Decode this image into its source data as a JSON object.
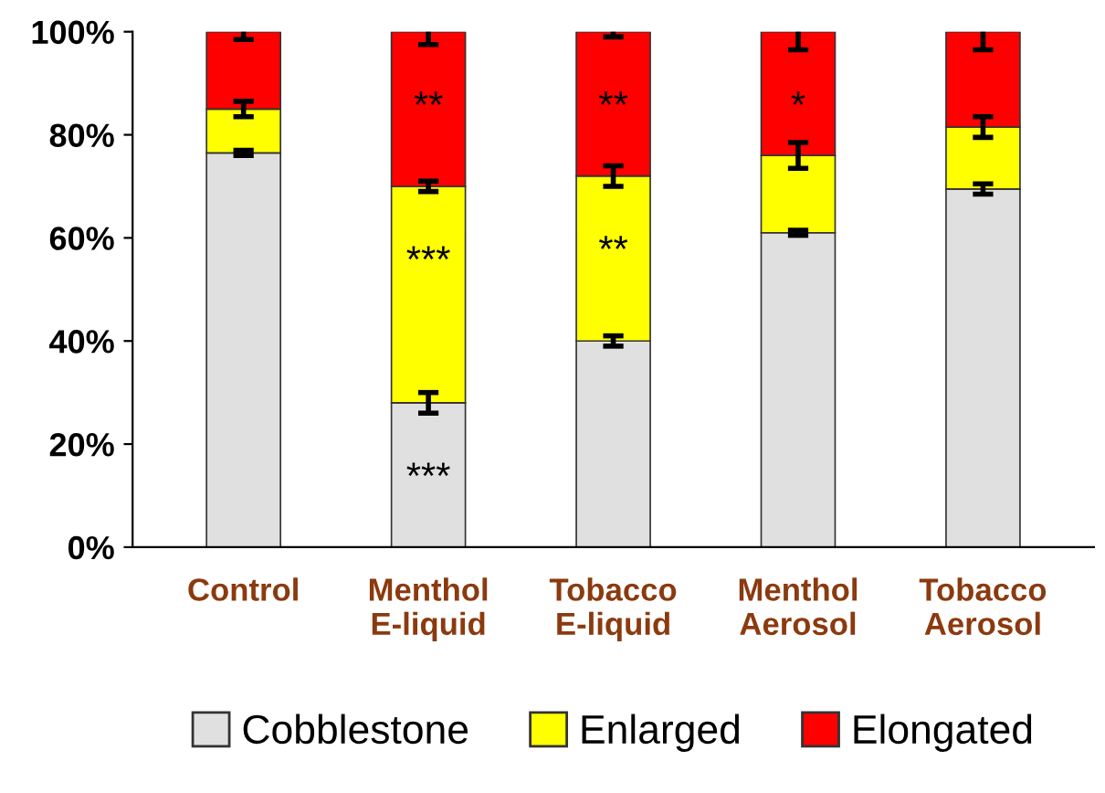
{
  "chart_data": {
    "type": "bar",
    "stacked": true,
    "categories": [
      "Control",
      "Menthol\nE-liquid",
      "Tobacco\nE-liquid",
      "Menthol\nAerosol",
      "Tobacco\nAerosol"
    ],
    "series": [
      {
        "name": "Cobblestone",
        "color": "#e0e0e0",
        "values": [
          76.5,
          28,
          40,
          61,
          69.5
        ],
        "errors": [
          0.5,
          2,
          1,
          0.5,
          1
        ]
      },
      {
        "name": "Enlarged",
        "color": "#ffff00",
        "values": [
          8.5,
          42,
          32,
          15,
          12
        ],
        "errors": [
          1.5,
          1,
          2,
          2.5,
          2
        ]
      },
      {
        "name": "Elongated",
        "color": "#ff0000",
        "values": [
          15,
          30,
          28,
          24,
          18.5
        ],
        "errors": [
          1.5,
          2.5,
          1,
          3.5,
          3.5
        ]
      }
    ],
    "ylim": [
      0,
      100
    ],
    "yticks": [
      {
        "value": 0,
        "label": "0%"
      },
      {
        "value": 20,
        "label": "20%"
      },
      {
        "value": 40,
        "label": "40%"
      },
      {
        "value": 60,
        "label": "60%"
      },
      {
        "value": 80,
        "label": "80%"
      },
      {
        "value": 100,
        "label": "100%"
      }
    ],
    "annotations": [
      {
        "text": "***",
        "x": "Menthol\nE-liquid",
        "y": 28
      },
      {
        "text": "***",
        "x": "Menthol\nE-liquid",
        "y": 70
      },
      {
        "text": "**",
        "x": "Menthol\nE-liquid",
        "y": 100
      },
      {
        "text": "**",
        "x": "Tobacco\nE-liquid",
        "y": 72
      },
      {
        "text": "**",
        "x": "Tobacco\nE-liquid",
        "y": 100
      },
      {
        "text": "*",
        "x": "Menthol\nAerosol",
        "y": 100
      }
    ],
    "grid": false,
    "legend": "bottom"
  }
}
